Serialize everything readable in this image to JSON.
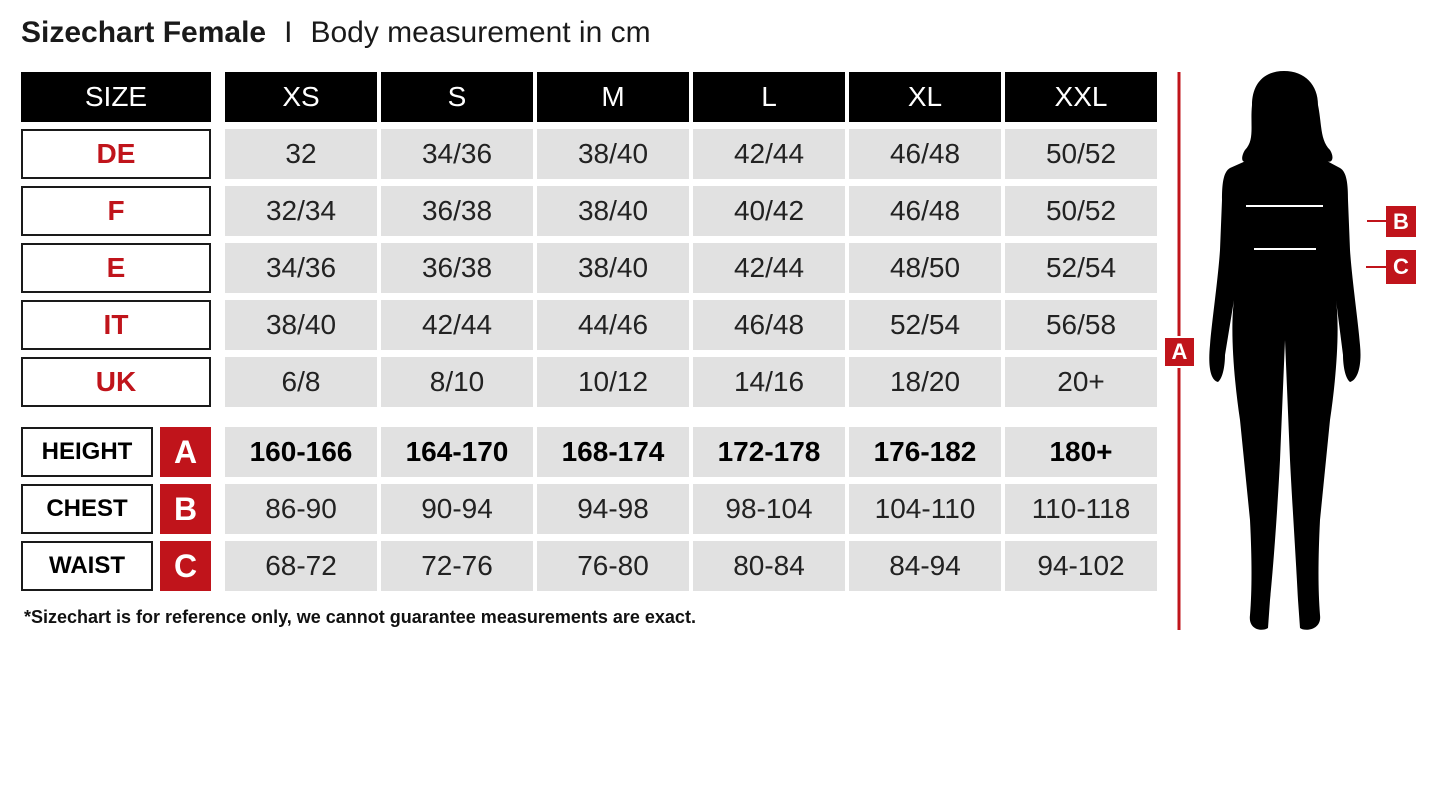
{
  "title": {
    "main": "Sizechart Female",
    "separator": "I",
    "subtitle": "Body measurement in cm"
  },
  "colors": {
    "accent": "#c0141b",
    "header_bg": "#000000",
    "cell_bg": "#e1e1e1"
  },
  "table": {
    "size_header": "SIZE",
    "sizes": [
      "XS",
      "S",
      "M",
      "L",
      "XL",
      "XXL"
    ],
    "country_rows": [
      {
        "label": "DE",
        "values": [
          "32",
          "34/36",
          "38/40",
          "42/44",
          "46/48",
          "50/52"
        ]
      },
      {
        "label": "F",
        "values": [
          "32/34",
          "36/38",
          "38/40",
          "40/42",
          "46/48",
          "50/52"
        ]
      },
      {
        "label": "E",
        "values": [
          "34/36",
          "36/38",
          "38/40",
          "42/44",
          "48/50",
          "52/54"
        ]
      },
      {
        "label": "IT",
        "values": [
          "38/40",
          "42/44",
          "44/46",
          "46/48",
          "52/54",
          "56/58"
        ]
      },
      {
        "label": "UK",
        "values": [
          "6/8",
          "8/10",
          "10/12",
          "14/16",
          "18/20",
          "20+"
        ]
      }
    ],
    "measurement_rows": [
      {
        "label": "HEIGHT",
        "letter": "A",
        "values": [
          "160-166",
          "164-170",
          "168-174",
          "172-178",
          "176-182",
          "180+"
        ]
      },
      {
        "label": "CHEST",
        "letter": "B",
        "values": [
          "86-90",
          "90-94",
          "94-98",
          "98-104",
          "104-110",
          "110-118"
        ]
      },
      {
        "label": "WAIST",
        "letter": "C",
        "values": [
          "68-72",
          "72-76",
          "76-80",
          "80-84",
          "84-94",
          "94-102"
        ]
      }
    ]
  },
  "footnote": "*Sizechart is for reference only, we cannot guarantee measurements are exact.",
  "figure": {
    "height_marker": "A",
    "chest_marker": "B",
    "waist_marker": "C"
  }
}
